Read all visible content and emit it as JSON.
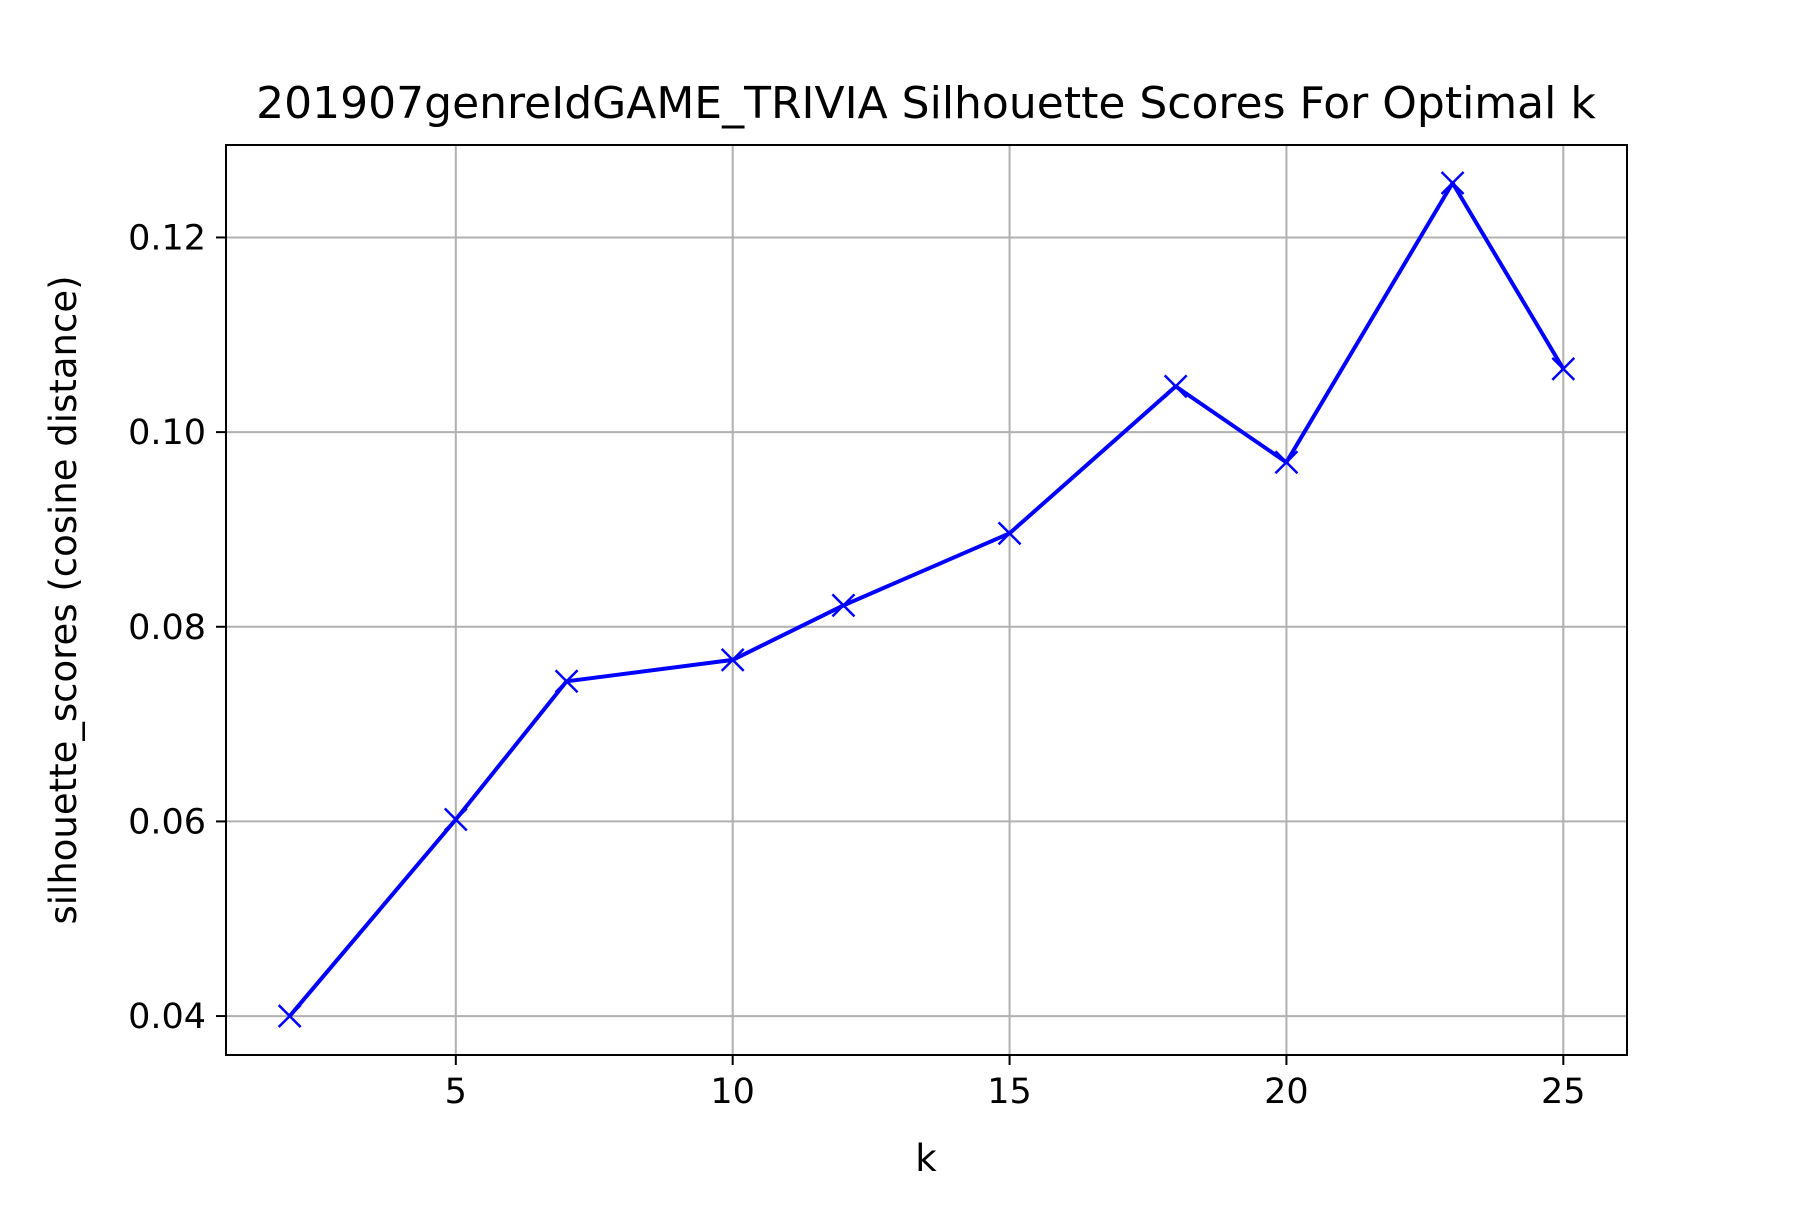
{
  "chart_data": {
    "type": "line",
    "title": "201907genreIdGAME_TRIVIA Silhouette Scores For Optimal k",
    "xlabel": "k",
    "ylabel": "silhouette_scores (cosine distance)",
    "xlim": [
      0.85,
      26.15
    ],
    "ylim": [
      0.036,
      0.1295
    ],
    "xticks": [
      5,
      10,
      15,
      20,
      25
    ],
    "yticks": [
      0.04,
      0.06,
      0.08,
      0.1,
      0.12
    ],
    "ytick_labels": [
      "0.04",
      "0.06",
      "0.08",
      "0.10",
      "0.12"
    ],
    "grid": true,
    "series": [
      {
        "x": [
          2,
          5,
          7,
          10,
          12,
          15,
          18,
          20,
          23,
          25
        ],
        "y": [
          0.04,
          0.0602,
          0.0744,
          0.0766,
          0.0822,
          0.0896,
          0.1047,
          0.0969,
          0.1256,
          0.1065
        ],
        "color": "#0000ff",
        "marker": "x"
      }
    ]
  }
}
